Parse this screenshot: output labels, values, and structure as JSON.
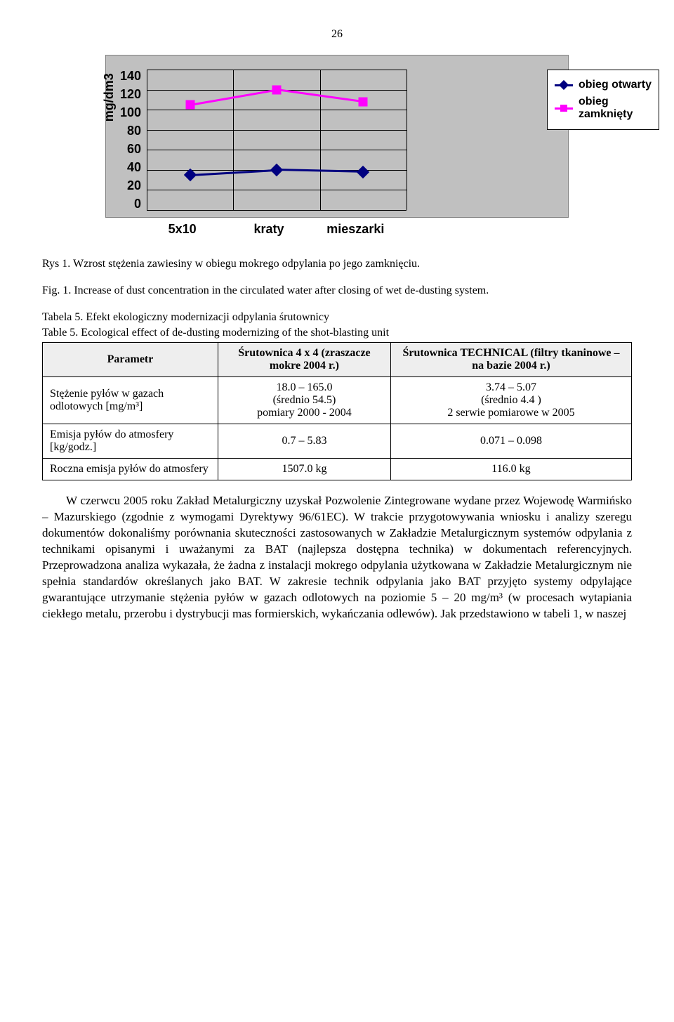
{
  "page_number": "26",
  "chart": {
    "type": "line",
    "yaxis_label": "mg/dm3",
    "ylim": [
      0,
      140
    ],
    "ytick_step": 20,
    "yticks": [
      "140",
      "120",
      "100",
      "80",
      "60",
      "40",
      "20",
      "0"
    ],
    "categories": [
      "5x10",
      "kraty",
      "mieszarki"
    ],
    "series": [
      {
        "name": "obieg otwarty",
        "color": "#000080",
        "marker": "diamond",
        "values": [
          35,
          40,
          38
        ]
      },
      {
        "name": "obieg zamknięty",
        "color": "#ff00ff",
        "marker": "square",
        "values": [
          105,
          120,
          108
        ]
      }
    ],
    "background_color": "#c0c0c0",
    "grid_color": "#000000",
    "label_fontsize": 18,
    "line_width": 3
  },
  "fig_caption_pl": "Rys 1. Wzrost stężenia zawiesiny w obiegu mokrego odpylania po jego zamknięciu.",
  "fig_caption_en": "Fig. 1. Increase of dust concentration in the circulated water after closing of wet de-dusting system.",
  "table_caption_pl": "Tabela 5. Efekt ekologiczny modernizacji odpylania śrutownicy",
  "table_caption_en": "Table 5. Ecological effect of de-dusting modernizing of the shot-blasting unit",
  "table": {
    "columns": [
      "Parametr",
      "Śrutownica 4 x 4 (zraszacze mokre 2004 r.)",
      "Śrutownica TECHNICAL (filtry tkaninowe – na bazie 2004 r.)"
    ],
    "rows": [
      [
        "Stężenie pyłów w gazach odlotowych [mg/m³]",
        "18.0 – 165.0\n(średnio 54.5)\npomiary 2000 - 2004",
        "3.74 – 5.07\n(średnio 4.4 )\n2 serwie pomiarowe w 2005"
      ],
      [
        "Emisja pyłów do atmosfery [kg/godz.]",
        "0.7 – 5.83",
        "0.071 – 0.098"
      ],
      [
        "Roczna emisja pyłów do atmosfery",
        "1507.0  kg",
        "116.0 kg"
      ]
    ],
    "header_bg": "#eeeeee"
  },
  "body_paragraph": "W czerwcu 2005 roku Zakład Metalurgiczny uzyskał Pozwolenie Zintegrowane wydane przez Wojewodę Warmińsko – Mazurskiego (zgodnie z wymogami Dyrektywy 96/61EC). W trakcie przygotowywania wniosku i analizy szeregu dokumentów dokonaliśmy porównania skuteczności zastosowanych w Zakładzie Metalurgicznym systemów odpylania z technikami opisanymi i uważanymi za BAT (najlepsza dostępna technika) w dokumentach referencyjnych. Przeprowadzona analiza wykazała, że żadna z instalacji mokrego odpylania użytkowana w Zakładzie Metalurgicznym nie spełnia standardów określanych jako BAT. W zakresie technik odpylania jako BAT przyjęto systemy odpylające gwarantujące utrzymanie stężenia pyłów w gazach odlotowych na poziomie 5 – 20 mg/m³ (w procesach wytapiania ciekłego metalu, przerobu i dystrybucji mas formierskich, wykańczania odlewów). Jak przedstawiono w tabeli 1, w naszej"
}
